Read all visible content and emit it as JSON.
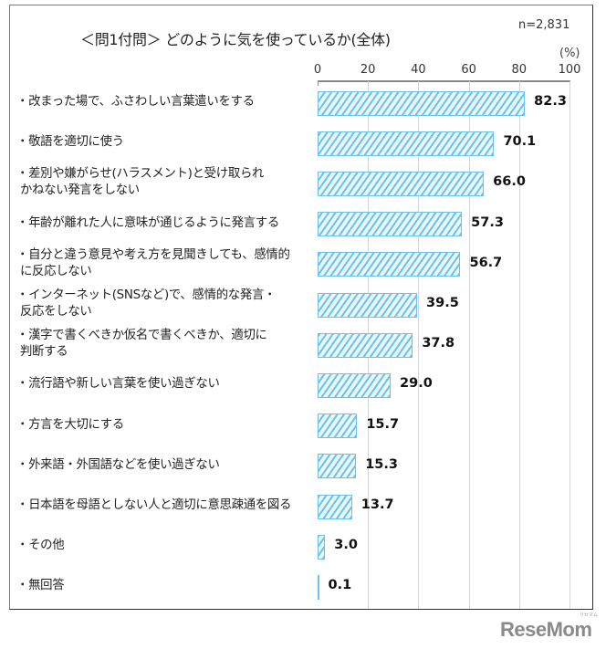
{
  "title": "＜問1付問＞ どのように気を使っているか(全体)",
  "sample_size": "n=2,831",
  "unit_label": "(%)",
  "axis": {
    "ticks": [
      "0",
      "20",
      "40",
      "60",
      "80",
      "100"
    ]
  },
  "items": [
    {
      "label": "・改まった場で、ふさわしい言葉遣いをする",
      "value": "82.3"
    },
    {
      "label": "・敬語を適切に使う",
      "value": "70.1"
    },
    {
      "label": "・差別や嫌がらせ(ハラスメント)と受け取られ\n かねない発言をしない",
      "value": "66.0"
    },
    {
      "label": "・年齢が離れた人に意味が通じるように発言する",
      "value": "57.3"
    },
    {
      "label": "・自分と違う意見や考え方を見聞きしても、感情的\n に反応しない",
      "value": "56.7"
    },
    {
      "label": "・インターネット(SNSなど)で、感情的な発言・\n 反応をしない",
      "value": "39.5"
    },
    {
      "label": "・漢字で書くべきか仮名で書くべきか、適切に\n 判断する",
      "value": "37.8"
    },
    {
      "label": "・流行語や新しい言葉を使い過ぎない",
      "value": "29.0"
    },
    {
      "label": "・方言を大切にする",
      "value": "15.7"
    },
    {
      "label": "・外来語・外国語などを使い過ぎない",
      "value": "15.3"
    },
    {
      "label": "・日本語を母語としない人と適切に意思疎通を図る",
      "value": "13.7"
    },
    {
      "label": "・その他",
      "value": "3.0"
    },
    {
      "label": "・無回答",
      "value": "0.1"
    }
  ],
  "colors": {
    "bar_stroke": "#6cc3e6",
    "bar_fill": "#e9f7fd"
  },
  "watermark": {
    "text": "ReseMom",
    "sub": "リセマム"
  },
  "chart_data": {
    "type": "bar",
    "orientation": "horizontal",
    "title": "＜問1付問＞ どのように気を使っているか(全体)",
    "subtitle": "n=2,831",
    "xlabel": "(%)",
    "ylabel": "",
    "xlim": [
      0,
      100
    ],
    "x_ticks": [
      0,
      20,
      40,
      60,
      80,
      100
    ],
    "grid": true,
    "legend": null,
    "categories": [
      "改まった場で、ふさわしい言葉遣いをする",
      "敬語を適切に使う",
      "差別や嫌がらせ(ハラスメント)と受け取られかねない発言をしない",
      "年齢が離れた人に意味が通じるように発言する",
      "自分と違う意見や考え方を見聞きしても、感情的に反応しない",
      "インターネット(SNSなど)で、感情的な発言・反応をしない",
      "漢字で書くべきか仮名で書くべきか、適切に判断する",
      "流行語や新しい言葉を使い過ぎない",
      "方言を大切にする",
      "外来語・外国語などを使い過ぎない",
      "日本語を母語としない人と適切に意思疎通を図る",
      "その他",
      "無回答"
    ],
    "values": [
      82.3,
      70.1,
      66.0,
      57.3,
      56.7,
      39.5,
      37.8,
      29.0,
      15.7,
      15.3,
      13.7,
      3.0,
      0.1
    ]
  }
}
